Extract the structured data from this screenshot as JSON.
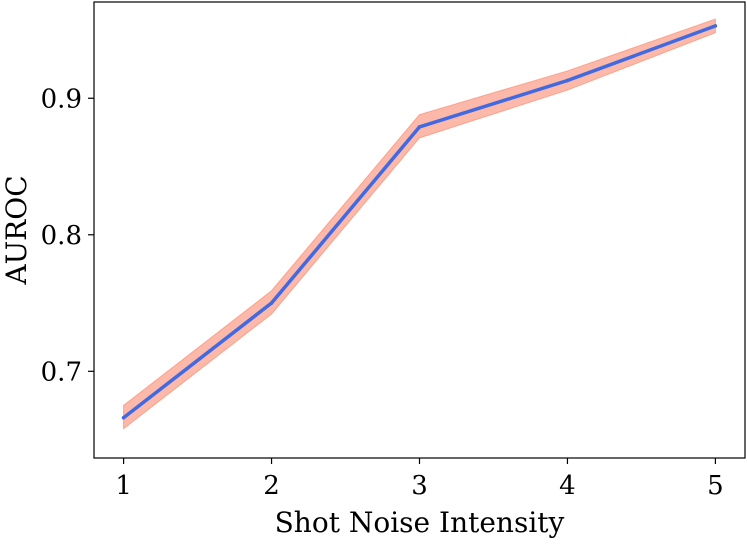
{
  "chart_data": {
    "type": "line",
    "title": "",
    "xlabel": "Shot Noise Intensity",
    "ylabel": "AUROC",
    "x": [
      1,
      2,
      3,
      4,
      5
    ],
    "series": [
      {
        "values": [
          0.666,
          0.75,
          0.879,
          0.913,
          0.953
        ],
        "lower": [
          0.658,
          0.742,
          0.871,
          0.906,
          0.948
        ],
        "upper": [
          0.675,
          0.759,
          0.888,
          0.92,
          0.958
        ],
        "line_color": "#4169e1",
        "band_color": "#fa8b70"
      }
    ],
    "xticks": [
      1,
      2,
      3,
      4,
      5
    ],
    "xtick_labels": [
      "1",
      "2",
      "3",
      "4",
      "5"
    ],
    "yticks": [
      0.7,
      0.8,
      0.9
    ],
    "ytick_labels": [
      "0.7",
      "0.8",
      "0.9"
    ],
    "xlim": [
      0.8,
      5.2
    ],
    "ylim": [
      0.6365,
      0.9705
    ],
    "grid": false,
    "legend": false
  }
}
